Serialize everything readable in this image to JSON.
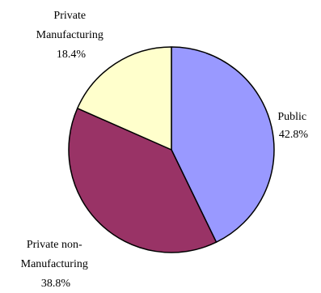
{
  "chart_data": {
    "type": "pie",
    "slices": [
      {
        "label_lines": [
          "Public",
          "42.8%"
        ],
        "name": "Public",
        "value": 42.8,
        "color": "#9999ff"
      },
      {
        "label_lines": [
          "Private non-",
          "Manufacturing",
          "38.8%"
        ],
        "name": "Private non-Manufacturing",
        "value": 38.8,
        "color": "#993366"
      },
      {
        "label_lines": [
          "Private",
          "Manufacturing",
          "18.4%"
        ],
        "name": "Private Manufacturing",
        "value": 18.4,
        "color": "#ffffcc"
      }
    ],
    "start_angle_deg": 0,
    "direction": "clockwise",
    "edge_color": "#000000"
  }
}
